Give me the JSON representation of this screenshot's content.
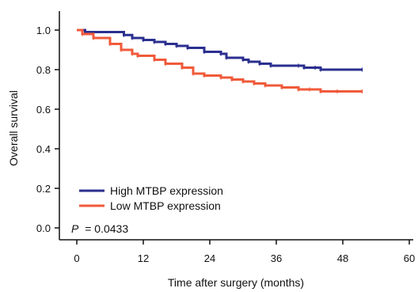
{
  "chart_data": {
    "type": "line",
    "title": "",
    "xlabel": "Time after surgery (months)",
    "ylabel": "Overall survival",
    "xlim": [
      0,
      60
    ],
    "ylim": [
      0,
      1
    ],
    "xticks": [
      0,
      12,
      24,
      36,
      48,
      60
    ],
    "yticks": [
      "0.0",
      "0.2",
      "0.4",
      "0.6",
      "0.8",
      "1.0"
    ],
    "grid": false,
    "legend_position": "bottom-left",
    "annotation": {
      "p_label": "P",
      "p_value": "= 0.0433"
    },
    "series": [
      {
        "name": "High MTBP expression",
        "color": "#2b2f8f",
        "step": true,
        "x": [
          0,
          1.5,
          8.5,
          10,
          12,
          14,
          16,
          18,
          20,
          23,
          26,
          27,
          30,
          31,
          33,
          35,
          40,
          41,
          43,
          44,
          51.5
        ],
        "y": [
          1.0,
          0.99,
          0.975,
          0.96,
          0.95,
          0.94,
          0.93,
          0.92,
          0.91,
          0.89,
          0.88,
          0.86,
          0.85,
          0.84,
          0.83,
          0.82,
          0.82,
          0.81,
          0.81,
          0.8,
          0.8
        ]
      },
      {
        "name": "Low MTBP expression",
        "color": "#f05a3a",
        "step": true,
        "x": [
          0,
          1,
          3,
          6,
          8,
          10,
          11,
          14,
          16,
          19,
          21,
          23,
          26,
          28,
          30,
          32,
          34,
          37,
          40,
          42,
          44,
          47,
          51.5
        ],
        "y": [
          1.0,
          0.98,
          0.96,
          0.93,
          0.9,
          0.88,
          0.87,
          0.85,
          0.83,
          0.81,
          0.78,
          0.77,
          0.76,
          0.75,
          0.74,
          0.73,
          0.72,
          0.71,
          0.7,
          0.7,
          0.69,
          0.69,
          0.69
        ]
      }
    ]
  }
}
